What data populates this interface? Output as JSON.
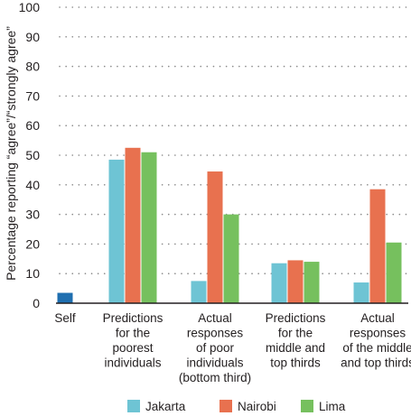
{
  "chart_data": {
    "type": "bar",
    "ylabel": "Percentage reporting “agree”/“strongly agree”",
    "ylim": [
      0,
      100
    ],
    "yticks": [
      0,
      10,
      20,
      30,
      40,
      50,
      60,
      70,
      80,
      90,
      100
    ],
    "grid": true,
    "legend_position": "bottom",
    "categories": [
      [
        "Self"
      ],
      [
        "Predictions",
        "for the",
        "poorest",
        "individuals"
      ],
      [
        "Actual",
        "responses",
        "of poor",
        "individuals",
        "(bottom third)"
      ],
      [
        "Predictions",
        "for the",
        "middle and",
        "top thirds"
      ],
      [
        "Actual",
        "responses",
        "of the middle",
        "and top thirds"
      ]
    ],
    "self": {
      "value": 3.5,
      "color": "#1f6fb0"
    },
    "series": [
      {
        "name": "Jakarta",
        "color": "#6ec4d4",
        "values": [
          null,
          48.5,
          7.5,
          13.5,
          7
        ]
      },
      {
        "name": "Nairobi",
        "color": "#e8714f",
        "values": [
          null,
          52.5,
          44.5,
          14.5,
          38.5
        ]
      },
      {
        "name": "Lima",
        "color": "#76c05e",
        "values": [
          null,
          51,
          30,
          14,
          20.5
        ]
      }
    ]
  }
}
